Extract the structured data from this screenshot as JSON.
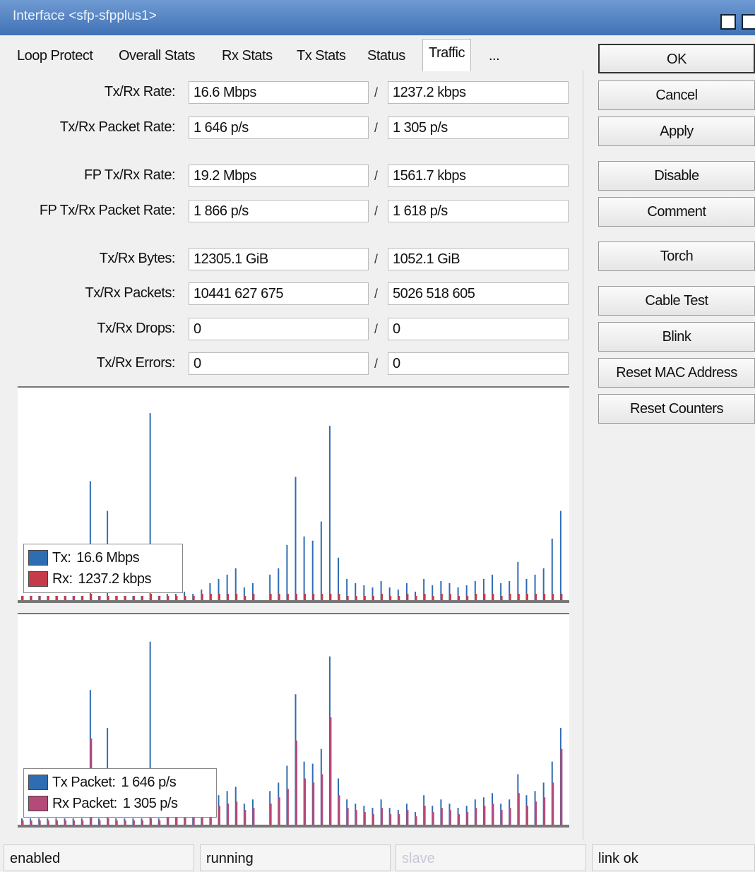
{
  "window": {
    "title": "Interface <sfp-sfpplus1>"
  },
  "tabs": [
    "Loop Protect",
    "Overall Stats",
    "Rx Stats",
    "Tx Stats",
    "Status",
    "Traffic",
    "..."
  ],
  "buttons": [
    "OK",
    "Cancel",
    "Apply",
    "Disable",
    "Comment",
    "Torch",
    "Cable Test",
    "Blink",
    "Reset MAC Address",
    "Reset Counters"
  ],
  "separator": "/",
  "fields": [
    {
      "label": "Tx/Rx Rate:",
      "tx": "16.6 Mbps",
      "rx": "1237.2 kbps"
    },
    {
      "label": "Tx/Rx Packet Rate:",
      "tx": "1 646 p/s",
      "rx": "1 305 p/s"
    },
    {
      "label": "FP Tx/Rx Rate:",
      "tx": "19.2 Mbps",
      "rx": "1561.7 kbps"
    },
    {
      "label": "FP Tx/Rx Packet Rate:",
      "tx": "1 866 p/s",
      "rx": "1 618 p/s"
    },
    {
      "label": "Tx/Rx Bytes:",
      "tx": "12305.1 GiB",
      "rx": "1052.1 GiB"
    },
    {
      "label": "Tx/Rx Packets:",
      "tx": "10441 627 675",
      "rx": "5026 518 605"
    },
    {
      "label": "Tx/Rx Drops:",
      "tx": "0",
      "rx": "0"
    },
    {
      "label": "Tx/Rx Errors:",
      "tx": "0",
      "rx": "0"
    }
  ],
  "graphs": [
    {
      "ylim": [
        0,
        100
      ],
      "series": [
        {
          "name": "Tx:",
          "value_label": "16.6 Mbps",
          "color": "#2f6db3",
          "values": [
            2,
            2,
            2,
            2,
            2,
            2,
            2,
            2,
            56,
            2,
            42,
            2,
            2,
            2,
            2,
            88,
            2,
            3,
            3,
            4,
            3,
            5,
            8,
            10,
            12,
            15,
            6,
            8,
            0,
            12,
            15,
            26,
            58,
            30,
            28,
            37,
            82,
            20,
            10,
            8,
            7,
            6,
            9,
            6,
            5,
            8,
            4,
            10,
            7,
            9,
            8,
            6,
            7,
            9,
            10,
            12,
            8,
            9,
            18,
            10,
            12,
            15,
            29,
            42
          ]
        },
        {
          "name": "Rx:",
          "value_label": "1237.2 kbps",
          "color": "#c63b4a",
          "values": [
            2,
            2,
            2,
            2,
            2,
            2,
            2,
            2,
            3,
            2,
            2,
            2,
            2,
            2,
            2,
            3,
            2,
            2,
            2,
            2,
            2,
            3,
            3,
            3,
            3,
            3,
            2,
            3,
            0,
            3,
            3,
            3,
            3,
            3,
            3,
            3,
            3,
            3,
            2,
            2,
            2,
            2,
            3,
            2,
            2,
            3,
            2,
            3,
            2,
            3,
            3,
            2,
            2,
            3,
            3,
            3,
            2,
            3,
            3,
            3,
            3,
            3,
            3,
            3
          ]
        }
      ]
    },
    {
      "ylim": [
        0,
        100
      ],
      "series": [
        {
          "name": "Tx Packet:",
          "value_label": "1 646 p/s",
          "color": "#2f6db3",
          "values": [
            3,
            3,
            3,
            3,
            3,
            3,
            3,
            3,
            64,
            3,
            46,
            3,
            3,
            3,
            3,
            87,
            3,
            6,
            7,
            8,
            6,
            10,
            12,
            14,
            16,
            18,
            10,
            12,
            0,
            16,
            20,
            28,
            62,
            30,
            29,
            36,
            80,
            22,
            12,
            10,
            9,
            8,
            12,
            8,
            7,
            10,
            6,
            14,
            9,
            12,
            10,
            8,
            9,
            12,
            13,
            15,
            10,
            12,
            24,
            14,
            16,
            20,
            30,
            46
          ]
        },
        {
          "name": "Rx Packet:",
          "value_label": "1 305 p/s",
          "color": "#b54a78",
          "values": [
            2,
            2,
            2,
            2,
            2,
            2,
            2,
            2,
            41,
            2,
            3,
            2,
            2,
            2,
            2,
            3,
            2,
            4,
            5,
            5,
            4,
            7,
            8,
            9,
            10,
            11,
            7,
            8,
            0,
            10,
            13,
            17,
            40,
            22,
            20,
            24,
            51,
            14,
            8,
            7,
            6,
            5,
            8,
            5,
            5,
            7,
            4,
            9,
            6,
            8,
            7,
            5,
            6,
            8,
            9,
            10,
            7,
            8,
            15,
            9,
            11,
            13,
            20,
            36
          ]
        }
      ]
    }
  ],
  "status": [
    "enabled",
    "running",
    "slave",
    "link ok"
  ]
}
